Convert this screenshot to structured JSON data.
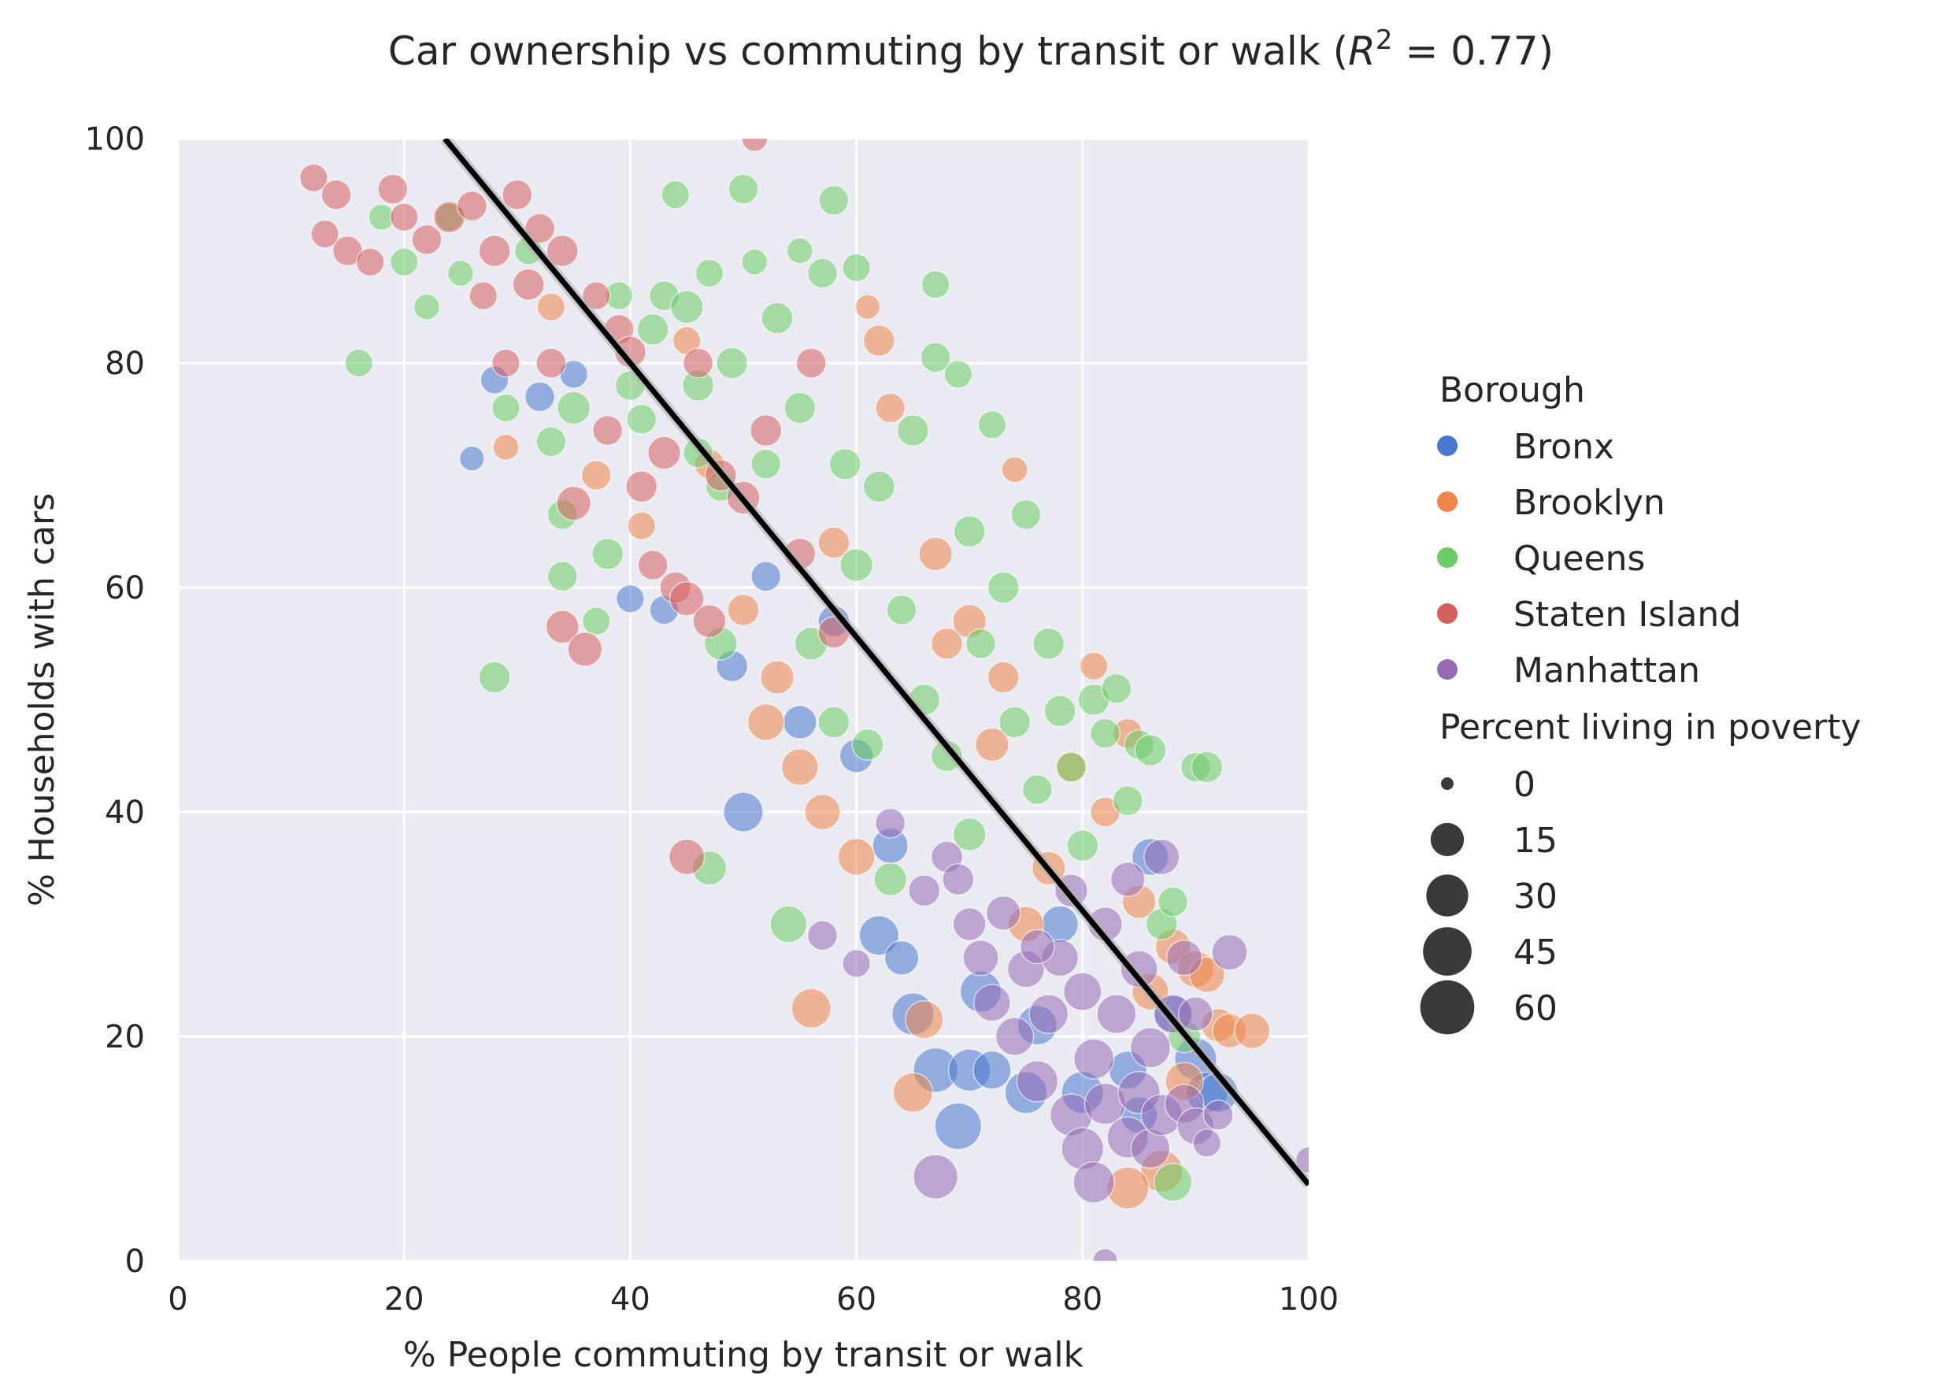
{
  "chart_data": {
    "type": "scatter",
    "title": "Car ownership vs commuting by transit or walk (R² = 0.77)",
    "title_parts": {
      "main": "Car ownership vs commuting by transit or walk (",
      "var": "R",
      "sup": "2",
      "rest": " = 0.77)"
    },
    "xlabel": "% People commuting by transit or walk",
    "ylabel": "% Households with cars",
    "xlim": [
      0,
      100
    ],
    "ylim": [
      0,
      100
    ],
    "xticks": [
      0,
      20,
      40,
      60,
      80,
      100
    ],
    "yticks": [
      0,
      20,
      40,
      60,
      80,
      100
    ],
    "grid": true,
    "background": "#eaeaf2",
    "legend_placement": "right",
    "hue_title": "Borough",
    "size_title": "Percent living in poverty",
    "size_legend": [
      0,
      15,
      30,
      45,
      60
    ],
    "regression_line": {
      "slope": -1.22,
      "intercept": 128.8,
      "color": "#000000"
    },
    "series": [
      {
        "name": "Bronx",
        "color": "#4878d0",
        "points": [
          [
            26,
            71.5,
            5
          ],
          [
            28,
            78.5,
            8
          ],
          [
            32,
            77,
            10
          ],
          [
            35,
            79,
            8
          ],
          [
            40,
            59,
            8
          ],
          [
            43,
            58,
            9
          ],
          [
            49,
            53,
            12
          ],
          [
            50,
            40,
            25
          ],
          [
            52,
            61,
            10
          ],
          [
            55,
            48,
            15
          ],
          [
            58,
            57,
            12
          ],
          [
            60,
            45,
            15
          ],
          [
            62,
            29,
            25
          ],
          [
            63,
            37,
            18
          ],
          [
            64,
            27,
            16
          ],
          [
            65,
            22,
            30
          ],
          [
            67,
            17,
            35
          ],
          [
            69,
            12,
            40
          ],
          [
            70,
            17,
            30
          ],
          [
            71,
            24,
            28
          ],
          [
            72,
            17,
            22
          ],
          [
            75,
            15,
            30
          ],
          [
            76,
            21,
            25
          ],
          [
            80,
            15,
            30
          ],
          [
            86,
            36,
            20
          ],
          [
            88,
            22,
            25
          ],
          [
            90,
            18,
            30
          ],
          [
            91,
            15,
            28
          ],
          [
            92,
            15,
            25
          ],
          [
            84,
            17,
            22
          ],
          [
            85,
            13,
            20
          ],
          [
            78,
            30,
            20
          ]
        ]
      },
      {
        "name": "Brooklyn",
        "color": "#ee854a",
        "points": [
          [
            29,
            72.5,
            6
          ],
          [
            33,
            85,
            8
          ],
          [
            37,
            70,
            10
          ],
          [
            41,
            65.5,
            8
          ],
          [
            45,
            82,
            8
          ],
          [
            47,
            71,
            10
          ],
          [
            50,
            58,
            12
          ],
          [
            52,
            48,
            20
          ],
          [
            53,
            52,
            15
          ],
          [
            55,
            44,
            20
          ],
          [
            56,
            22.5,
            25
          ],
          [
            57,
            40,
            18
          ],
          [
            58,
            64,
            12
          ],
          [
            60,
            36,
            20
          ],
          [
            61,
            85,
            5
          ],
          [
            62,
            82,
            12
          ],
          [
            63,
            76,
            10
          ],
          [
            65,
            15,
            25
          ],
          [
            66,
            21.5,
            22
          ],
          [
            67,
            63,
            15
          ],
          [
            68,
            55,
            12
          ],
          [
            70,
            57,
            15
          ],
          [
            72,
            46,
            15
          ],
          [
            73,
            52,
            12
          ],
          [
            74,
            70.5,
            6
          ],
          [
            75,
            30,
            18
          ],
          [
            77,
            35,
            15
          ],
          [
            79,
            44,
            12
          ],
          [
            81,
            53,
            8
          ],
          [
            82,
            40,
            10
          ],
          [
            84,
            47,
            10
          ],
          [
            85,
            32,
            15
          ],
          [
            86,
            24,
            20
          ],
          [
            87,
            8,
            30
          ],
          [
            88,
            28,
            18
          ],
          [
            89,
            16,
            22
          ],
          [
            90,
            26,
            20
          ],
          [
            91,
            25.5,
            18
          ],
          [
            92,
            21,
            15
          ],
          [
            93,
            20.5,
            16
          ],
          [
            95,
            20.5,
            18
          ],
          [
            84,
            6.5,
            30
          ]
        ]
      },
      {
        "name": "Queens",
        "color": "#6acc64",
        "points": [
          [
            16,
            80,
            8
          ],
          [
            18,
            93,
            6
          ],
          [
            20,
            89,
            8
          ],
          [
            22,
            85,
            6
          ],
          [
            24,
            93,
            8
          ],
          [
            25,
            88,
            6
          ],
          [
            28,
            52,
            12
          ],
          [
            29,
            76,
            8
          ],
          [
            31,
            90,
            8
          ],
          [
            33,
            73,
            10
          ],
          [
            34,
            61,
            10
          ],
          [
            34,
            66.5,
            10
          ],
          [
            35,
            76,
            14
          ],
          [
            37,
            57,
            8
          ],
          [
            38,
            63,
            12
          ],
          [
            39,
            86,
            8
          ],
          [
            40,
            78,
            10
          ],
          [
            41,
            75,
            10
          ],
          [
            42,
            83,
            12
          ],
          [
            43,
            86,
            10
          ],
          [
            44,
            95,
            8
          ],
          [
            45,
            85,
            14
          ],
          [
            46,
            78,
            12
          ],
          [
            46,
            72,
            10
          ],
          [
            47,
            35,
            16
          ],
          [
            47,
            88,
            8
          ],
          [
            48,
            55,
            14
          ],
          [
            48,
            69,
            10
          ],
          [
            49,
            80,
            12
          ],
          [
            50,
            95.5,
            10
          ],
          [
            51,
            89,
            6
          ],
          [
            52,
            71,
            10
          ],
          [
            53,
            84,
            12
          ],
          [
            54,
            30,
            20
          ],
          [
            55,
            90,
            6
          ],
          [
            55,
            76,
            12
          ],
          [
            56,
            55,
            14
          ],
          [
            57,
            88,
            10
          ],
          [
            58,
            94.5,
            10
          ],
          [
            58,
            48,
            12
          ],
          [
            59,
            71,
            12
          ],
          [
            60,
            62,
            14
          ],
          [
            60,
            88.5,
            8
          ],
          [
            61,
            46,
            12
          ],
          [
            62,
            69,
            12
          ],
          [
            63,
            34,
            14
          ],
          [
            64,
            58,
            10
          ],
          [
            65,
            74,
            12
          ],
          [
            66,
            50,
            12
          ],
          [
            67,
            87,
            8
          ],
          [
            67,
            80.5,
            10
          ],
          [
            68,
            45,
            12
          ],
          [
            69,
            79,
            8
          ],
          [
            70,
            65,
            12
          ],
          [
            70,
            38,
            14
          ],
          [
            71,
            55,
            10
          ],
          [
            72,
            74.5,
            8
          ],
          [
            73,
            60,
            12
          ],
          [
            74,
            48,
            12
          ],
          [
            75,
            66.5,
            10
          ],
          [
            76,
            42,
            10
          ],
          [
            77,
            55,
            12
          ],
          [
            78,
            49,
            12
          ],
          [
            79,
            44,
            10
          ],
          [
            80,
            37,
            12
          ],
          [
            81,
            50,
            12
          ],
          [
            82,
            47,
            10
          ],
          [
            83,
            51,
            10
          ],
          [
            84,
            41,
            10
          ],
          [
            85,
            46,
            10
          ],
          [
            86,
            45.5,
            12
          ],
          [
            87,
            30,
            12
          ],
          [
            88,
            32,
            10
          ],
          [
            89,
            20,
            14
          ],
          [
            90,
            44,
            10
          ],
          [
            91,
            44,
            12
          ],
          [
            88,
            7,
            22
          ]
        ]
      },
      {
        "name": "Staten Island",
        "color": "#d65f5f",
        "points": [
          [
            12,
            96.5,
            8
          ],
          [
            13,
            91.5,
            8
          ],
          [
            14,
            95,
            10
          ],
          [
            15,
            90,
            10
          ],
          [
            17,
            89,
            8
          ],
          [
            19,
            95.5,
            10
          ],
          [
            20,
            93,
            8
          ],
          [
            22,
            91,
            10
          ],
          [
            24,
            93,
            12
          ],
          [
            26,
            94,
            10
          ],
          [
            27,
            86,
            8
          ],
          [
            28,
            90,
            12
          ],
          [
            29,
            80,
            8
          ],
          [
            30,
            95,
            10
          ],
          [
            31,
            87,
            12
          ],
          [
            32,
            92,
            10
          ],
          [
            33,
            80,
            10
          ],
          [
            34,
            90,
            12
          ],
          [
            34,
            56.5,
            14
          ],
          [
            35,
            67.5,
            16
          ],
          [
            36,
            54.5,
            16
          ],
          [
            37,
            86,
            8
          ],
          [
            38,
            74,
            10
          ],
          [
            39,
            83,
            10
          ],
          [
            40,
            81,
            12
          ],
          [
            41,
            69,
            12
          ],
          [
            42,
            62,
            10
          ],
          [
            43,
            72,
            14
          ],
          [
            44,
            60,
            12
          ],
          [
            45,
            59,
            16
          ],
          [
            45,
            36,
            18
          ],
          [
            46,
            80,
            10
          ],
          [
            47,
            57,
            14
          ],
          [
            48,
            70,
            12
          ],
          [
            50,
            68,
            14
          ],
          [
            51,
            100,
            6
          ],
          [
            52,
            74,
            12
          ],
          [
            55,
            63,
            12
          ],
          [
            56,
            80,
            10
          ],
          [
            58,
            56,
            12
          ]
        ]
      },
      {
        "name": "Manhattan",
        "color": "#956cb4",
        "points": [
          [
            57,
            29,
            10
          ],
          [
            60,
            26.5,
            8
          ],
          [
            63,
            39,
            10
          ],
          [
            66,
            33,
            12
          ],
          [
            67,
            7.5,
            35
          ],
          [
            68,
            36,
            12
          ],
          [
            69,
            34,
            12
          ],
          [
            70,
            30,
            14
          ],
          [
            71,
            27,
            18
          ],
          [
            72,
            23,
            20
          ],
          [
            73,
            31,
            16
          ],
          [
            74,
            20,
            22
          ],
          [
            75,
            26,
            20
          ],
          [
            76,
            16,
            28
          ],
          [
            77,
            22,
            24
          ],
          [
            78,
            27,
            20
          ],
          [
            79,
            13,
            30
          ],
          [
            80,
            10,
            30
          ],
          [
            80,
            24,
            22
          ],
          [
            81,
            18,
            26
          ],
          [
            81,
            7,
            28
          ],
          [
            82,
            14,
            28
          ],
          [
            82,
            30,
            16
          ],
          [
            83,
            22,
            24
          ],
          [
            84,
            11,
            28
          ],
          [
            84,
            34,
            16
          ],
          [
            85,
            15,
            30
          ],
          [
            85,
            26,
            20
          ],
          [
            86,
            19,
            26
          ],
          [
            86,
            10,
            24
          ],
          [
            87,
            13,
            28
          ],
          [
            87,
            36,
            18
          ],
          [
            88,
            22,
            22
          ],
          [
            89,
            14,
            24
          ],
          [
            89,
            27,
            18
          ],
          [
            90,
            12,
            20
          ],
          [
            90,
            22,
            16
          ],
          [
            91,
            10.5,
            8
          ],
          [
            92,
            13,
            10
          ],
          [
            93,
            27.5,
            18
          ],
          [
            100,
            9,
            6
          ],
          [
            82,
            0,
            5
          ],
          [
            79,
            33,
            14
          ],
          [
            76,
            28,
            16
          ]
        ]
      }
    ]
  }
}
